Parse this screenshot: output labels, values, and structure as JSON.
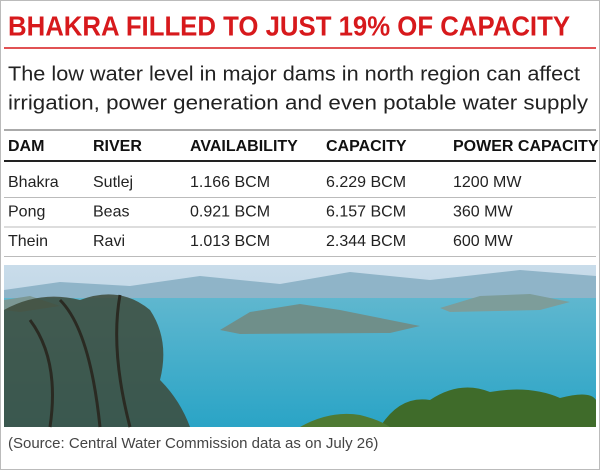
{
  "header": {
    "title": "BHAKRA FILLED TO JUST 19% OF CAPACITY",
    "subtitle": [
      "The low water level in major dams in north region can affect",
      "irrigation, power generation and even potable water supply"
    ]
  },
  "table": {
    "columns": [
      "DAM",
      "RIVER",
      "AVAILABILITY",
      "CAPACITY",
      "POWER CAPACITY"
    ],
    "rows": [
      [
        "Bhakra",
        "Sutlej",
        "1.166 BCM",
        "6.229 BCM",
        "1200 MW"
      ],
      [
        "Pong",
        "Beas",
        "0.921 BCM",
        "6.157 BCM",
        "360 MW"
      ],
      [
        "Thein",
        "Ravi",
        "1.013 BCM",
        "2.344 BCM",
        "600 MW"
      ]
    ]
  },
  "source": "(Source: Central Water Commission data as on July 26)"
}
